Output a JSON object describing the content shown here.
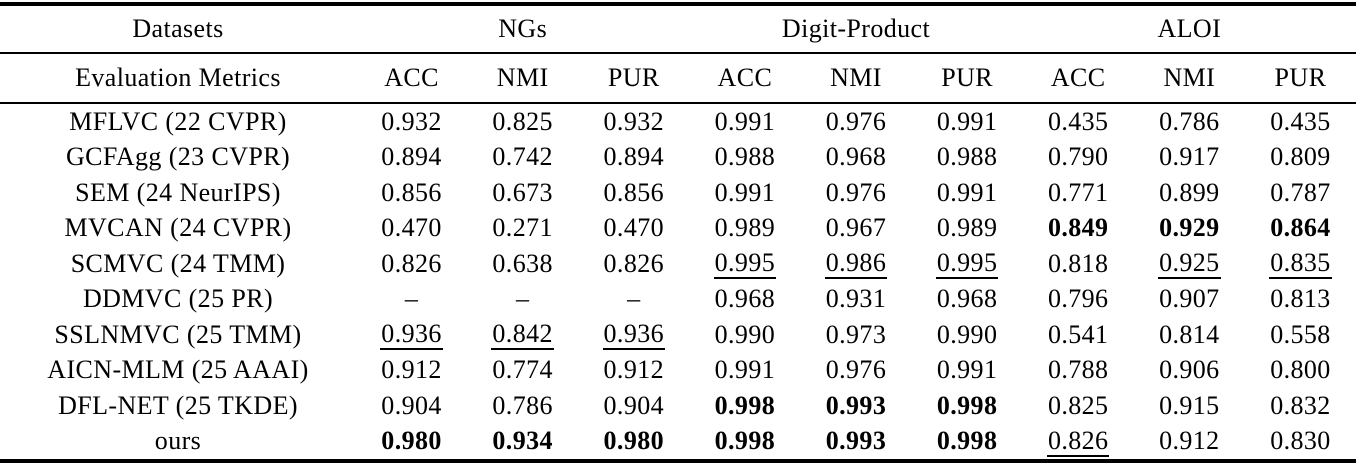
{
  "table": {
    "header": {
      "col1": "Datasets",
      "col1_sub": "Evaluation Metrics",
      "groups": [
        {
          "label": "NGs"
        },
        {
          "label": "Digit-Product"
        },
        {
          "label": "ALOI"
        }
      ],
      "metrics": [
        "ACC",
        "NMI",
        "PUR"
      ]
    },
    "rows": [
      {
        "method": "MFLVC (22 CVPR)",
        "values": [
          "0.932",
          "0.825",
          "0.932",
          "0.991",
          "0.976",
          "0.991",
          "0.435",
          "0.786",
          "0.435"
        ],
        "styles": [
          "n",
          "n",
          "n",
          "n",
          "n",
          "n",
          "n",
          "n",
          "n"
        ]
      },
      {
        "method": "GCFAgg (23 CVPR)",
        "values": [
          "0.894",
          "0.742",
          "0.894",
          "0.988",
          "0.968",
          "0.988",
          "0.790",
          "0.917",
          "0.809"
        ],
        "styles": [
          "n",
          "n",
          "n",
          "n",
          "n",
          "n",
          "n",
          "n",
          "n"
        ]
      },
      {
        "method": "SEM (24 NeurIPS)",
        "values": [
          "0.856",
          "0.673",
          "0.856",
          "0.991",
          "0.976",
          "0.991",
          "0.771",
          "0.899",
          "0.787"
        ],
        "styles": [
          "n",
          "n",
          "n",
          "n",
          "n",
          "n",
          "n",
          "n",
          "n"
        ]
      },
      {
        "method": "MVCAN (24 CVPR)",
        "values": [
          "0.470",
          "0.271",
          "0.470",
          "0.989",
          "0.967",
          "0.989",
          "0.849",
          "0.929",
          "0.864"
        ],
        "styles": [
          "n",
          "n",
          "n",
          "n",
          "n",
          "n",
          "b",
          "b",
          "b"
        ]
      },
      {
        "method": "SCMVC (24 TMM)",
        "values": [
          "0.826",
          "0.638",
          "0.826",
          "0.995",
          "0.986",
          "0.995",
          "0.818",
          "0.925",
          "0.835"
        ],
        "styles": [
          "n",
          "n",
          "n",
          "u",
          "u",
          "u",
          "n",
          "u",
          "u"
        ]
      },
      {
        "method": "DDMVC (25 PR)",
        "values": [
          "–",
          "–",
          "–",
          "0.968",
          "0.931",
          "0.968",
          "0.796",
          "0.907",
          "0.813"
        ],
        "styles": [
          "n",
          "n",
          "n",
          "n",
          "n",
          "n",
          "n",
          "n",
          "n"
        ]
      },
      {
        "method": "SSLNMVC (25 TMM)",
        "values": [
          "0.936",
          "0.842",
          "0.936",
          "0.990",
          "0.973",
          "0.990",
          "0.541",
          "0.814",
          "0.558"
        ],
        "styles": [
          "u",
          "u",
          "u",
          "n",
          "n",
          "n",
          "n",
          "n",
          "n"
        ]
      },
      {
        "method": "AICN-MLM (25 AAAI)",
        "values": [
          "0.912",
          "0.774",
          "0.912",
          "0.991",
          "0.976",
          "0.991",
          "0.788",
          "0.906",
          "0.800"
        ],
        "styles": [
          "n",
          "n",
          "n",
          "n",
          "n",
          "n",
          "n",
          "n",
          "n"
        ]
      },
      {
        "method": "DFL-NET (25 TKDE)",
        "values": [
          "0.904",
          "0.786",
          "0.904",
          "0.998",
          "0.993",
          "0.998",
          "0.825",
          "0.915",
          "0.832"
        ],
        "styles": [
          "n",
          "n",
          "n",
          "b",
          "b",
          "b",
          "n",
          "n",
          "n"
        ]
      },
      {
        "method": "ours",
        "values": [
          "0.980",
          "0.934",
          "0.980",
          "0.998",
          "0.993",
          "0.998",
          "0.826",
          "0.912",
          "0.830"
        ],
        "styles": [
          "b",
          "b",
          "b",
          "b",
          "b",
          "b",
          "u",
          "n",
          "n"
        ]
      }
    ]
  },
  "colors": {
    "text": "#000000",
    "background": "#ffffff",
    "rule": "#000000"
  }
}
